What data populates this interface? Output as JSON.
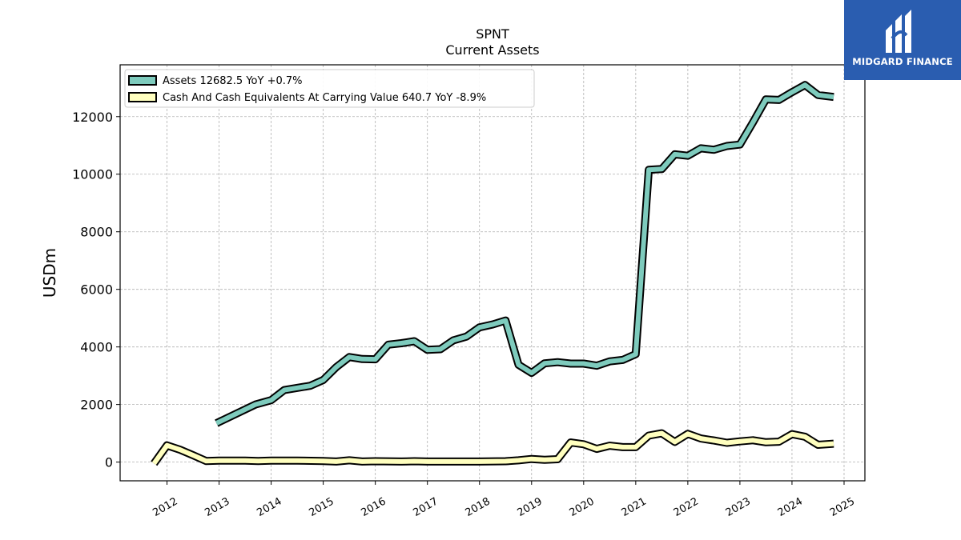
{
  "chart_data": {
    "type": "line",
    "title": "SPNT",
    "subtitle": "Current  Assets",
    "ylabel": "USDm",
    "xlabel": "",
    "xlim": [
      2011.1,
      2025.4
    ],
    "ylim": [
      -650,
      13800
    ],
    "y_ticks": [
      0,
      2000,
      4000,
      6000,
      8000,
      10000,
      12000
    ],
    "y_tick_labels": [
      "0",
      "2000",
      "4000",
      "6000",
      "8000",
      "10000",
      "12000"
    ],
    "x_ticks": [
      2012,
      2013,
      2014,
      2015,
      2016,
      2017,
      2018,
      2019,
      2020,
      2021,
      2022,
      2023,
      2024,
      2025
    ],
    "x_tick_labels": [
      "2012",
      "2013",
      "2014",
      "2015",
      "2016",
      "2017",
      "2018",
      "2019",
      "2020",
      "2021",
      "2022",
      "2023",
      "2024",
      "2025"
    ],
    "grid": true,
    "legend_position": "top-left",
    "series": [
      {
        "name": "Assets  12682.5 YoY +0.7%",
        "color": "#7ecbbd",
        "x": [
          2012.95,
          2013.7,
          2014.0,
          2014.25,
          2014.75,
          2015.0,
          2015.25,
          2015.5,
          2015.75,
          2016.0,
          2016.25,
          2016.5,
          2016.75,
          2017.0,
          2017.25,
          2017.5,
          2017.75,
          2018.0,
          2018.25,
          2018.5,
          2018.75,
          2019.0,
          2019.25,
          2019.5,
          2019.75,
          2020.0,
          2020.25,
          2020.5,
          2020.75,
          2021.0,
          2021.25,
          2021.5,
          2021.75,
          2022.0,
          2022.25,
          2022.5,
          2022.75,
          2023.0,
          2023.25,
          2023.5,
          2023.75,
          2024.0,
          2024.25,
          2024.5,
          2024.8
        ],
        "y": [
          1350,
          2000,
          2150,
          2500,
          2650,
          2850,
          3300,
          3650,
          3580,
          3570,
          4080,
          4130,
          4200,
          3900,
          3920,
          4230,
          4360,
          4680,
          4780,
          4920,
          3380,
          3100,
          3430,
          3470,
          3420,
          3420,
          3350,
          3500,
          3550,
          3750,
          10150,
          10180,
          10690,
          10640,
          10900,
          10850,
          10980,
          11030,
          11800,
          12600,
          12580,
          12850,
          13100,
          12750,
          12682.5
        ]
      },
      {
        "name": "Cash And Cash Equivalents At Carrying Value  640.7 YoY -8.9%",
        "color": "#ffffbf",
        "x": [
          2011.75,
          2012.0,
          2012.25,
          2012.5,
          2012.75,
          2013.0,
          2013.5,
          2013.75,
          2014.0,
          2014.5,
          2015.0,
          2015.25,
          2015.5,
          2015.75,
          2016.0,
          2016.5,
          2016.75,
          2017.0,
          2017.5,
          2018.0,
          2018.5,
          2018.75,
          2019.0,
          2019.25,
          2019.5,
          2019.75,
          2020.0,
          2020.25,
          2020.5,
          2020.75,
          2021.0,
          2021.25,
          2021.5,
          2021.75,
          2022.0,
          2022.25,
          2022.5,
          2022.75,
          2023.0,
          2023.25,
          2023.5,
          2023.75,
          2024.0,
          2024.25,
          2024.5,
          2024.8
        ],
        "y": [
          -50,
          580,
          430,
          240,
          40,
          50,
          50,
          40,
          50,
          50,
          40,
          20,
          60,
          20,
          30,
          20,
          30,
          20,
          20,
          20,
          30,
          60,
          110,
          80,
          100,
          680,
          620,
          460,
          570,
          520,
          520,
          920,
          1000,
          700,
          980,
          820,
          750,
          670,
          720,
          760,
          690,
          710,
          970,
          880,
          600,
          640.7
        ]
      }
    ]
  },
  "logo": {
    "text": "MIDGARD FINANCE"
  }
}
